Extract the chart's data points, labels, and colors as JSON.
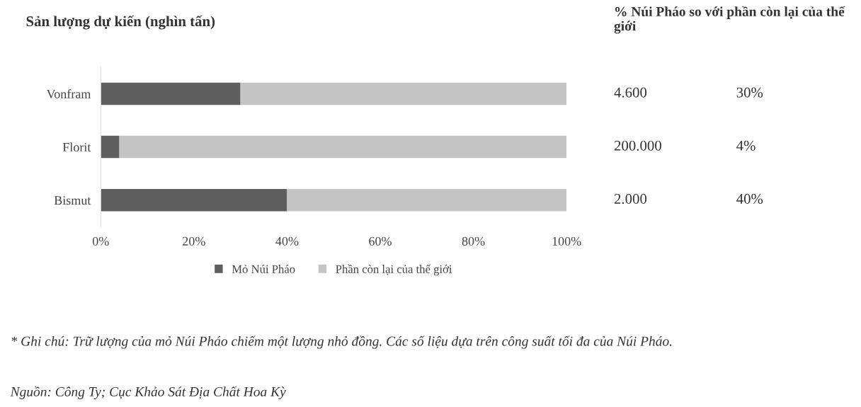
{
  "chart_data": {
    "type": "bar",
    "orientation": "horizontal",
    "stacked": true,
    "title": "Sản lượng dự kiến (nghìn tấn)",
    "categories": [
      "Vonfram",
      "Florit",
      "Bismut"
    ],
    "series": [
      {
        "name": "Mỏ Núi Pháo",
        "color": "#5e5e5e",
        "values": [
          30,
          4,
          40
        ]
      },
      {
        "name": "Phần còn lại của thế giới",
        "color": "#c4c4c4",
        "values": [
          70,
          96,
          60
        ]
      }
    ],
    "xlim": [
      0,
      100
    ],
    "xticks": [
      {
        "value": 0,
        "label": "0%"
      },
      {
        "value": 20,
        "label": "20%"
      },
      {
        "value": 40,
        "label": "40%"
      },
      {
        "value": 60,
        "label": "60%"
      },
      {
        "value": 80,
        "label": "80%"
      },
      {
        "value": 100,
        "label": "100%"
      }
    ],
    "annotations": [
      "% Núi Pháo so với phần còn lại của thế giới",
      "4.600",
      "200.000",
      "2.000",
      "30%",
      "4%",
      "40%",
      "* Ghi chú: Trữ lượng của mỏ Núi Pháo chiếm một lượng nhỏ đồng. Các số liệu dựa trên công suất tối đa của Núi Pháo.",
      "Nguồn: Công Ty; Cục Khảo Sát Địa Chất Hoa Kỳ"
    ],
    "legend": "bottom",
    "grid": false
  }
}
